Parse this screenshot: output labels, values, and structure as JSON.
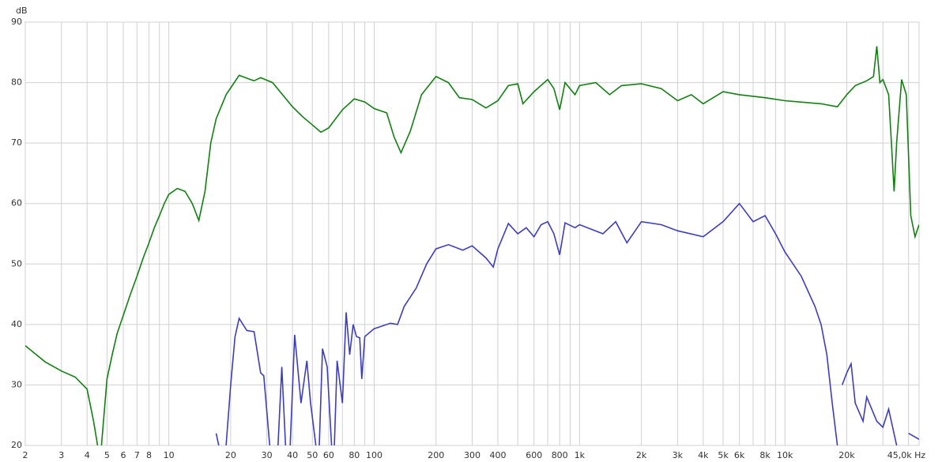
{
  "chart_data": {
    "type": "line",
    "y_label": "dB",
    "xscale": "log",
    "xlim": [
      2,
      45000
    ],
    "ylim": [
      20,
      90
    ],
    "yticks": [
      20,
      30,
      40,
      50,
      60,
      70,
      80,
      90
    ],
    "xticks": [
      2,
      3,
      4,
      5,
      6,
      7,
      8,
      10,
      20,
      30,
      40,
      50,
      60,
      80,
      100,
      200,
      300,
      400,
      600,
      800,
      {
        "value": 1000,
        "label": "1k"
      },
      {
        "value": 2000,
        "label": "2k"
      },
      {
        "value": 3000,
        "label": "3k"
      },
      {
        "value": 4000,
        "label": "4k"
      },
      {
        "value": 5000,
        "label": "5k"
      },
      {
        "value": 6000,
        "label": "6k"
      },
      {
        "value": 8000,
        "label": "8k"
      },
      {
        "value": 10000,
        "label": "10k"
      },
      {
        "value": 20000,
        "label": "20k"
      },
      {
        "value": 45000,
        "label": "45,0k Hz"
      }
    ],
    "x_minor_ticks": [
      9,
      70,
      90,
      500,
      700,
      900,
      7000,
      9000,
      30000,
      40000
    ],
    "grid": true,
    "series": [
      {
        "name": "green",
        "color": "#118011",
        "x": [
          2,
          2.5,
          3,
          3.5,
          4,
          4.3,
          4.5,
          4.6,
          4.7,
          5,
          5.3,
          5.6,
          6,
          6.5,
          7,
          7.5,
          8,
          8.5,
          9,
          9.5,
          10,
          11,
          12,
          13,
          14,
          15,
          16,
          17,
          19,
          22,
          25,
          26,
          28,
          32,
          40,
          45,
          50,
          55,
          60,
          70,
          80,
          90,
          100,
          115,
          125,
          135,
          150,
          170,
          200,
          230,
          260,
          300,
          350,
          400,
          450,
          500,
          530,
          600,
          700,
          750,
          800,
          850,
          950,
          1000,
          1200,
          1400,
          1600,
          2000,
          2500,
          3000,
          3500,
          4000,
          5000,
          6000,
          8000,
          10000,
          15000,
          18000,
          20000,
          22000,
          25000,
          27000,
          28000,
          29000,
          30000,
          32000,
          33000,
          34000,
          35000,
          37000,
          39000,
          41000,
          43000,
          45000
        ],
        "values": [
          36.5,
          33.8,
          32.3,
          31.3,
          29.3,
          24,
          20,
          null,
          20,
          31,
          35,
          38.5,
          41.5,
          45,
          48,
          51,
          53.5,
          56,
          58,
          60,
          61.5,
          62.5,
          62,
          60,
          57.2,
          62,
          70,
          74,
          78,
          81.2,
          80.5,
          80.3,
          80.8,
          80,
          76,
          74.3,
          73,
          71.8,
          72.5,
          75.5,
          77.3,
          76.8,
          75.7,
          75,
          71,
          68.4,
          72,
          78,
          81,
          80,
          77.5,
          77.2,
          75.8,
          77,
          79.5,
          79.8,
          76.5,
          78.5,
          80.5,
          79,
          75.5,
          80,
          78,
          79.5,
          80,
          78,
          79.5,
          79.8,
          79,
          77,
          78,
          76.5,
          78.5,
          78,
          77.5,
          77,
          76.5,
          76,
          78,
          79.5,
          80.3,
          81,
          86,
          80,
          80.5,
          78,
          70,
          62,
          70,
          80.5,
          78,
          58,
          54.5,
          56.5
        ]
      },
      {
        "name": "blue",
        "color": "#3c3cc0",
        "x": [
          17,
          17.5,
          18,
          19,
          20,
          21,
          22,
          24,
          26,
          28,
          29,
          31,
          32,
          34,
          35.5,
          37,
          38,
          39,
          41,
          44,
          47,
          49,
          52,
          53,
          54,
          56,
          59,
          62,
          63,
          64,
          66,
          70,
          73,
          76,
          79,
          82,
          85,
          87,
          90,
          100,
          120,
          130,
          140,
          160,
          180,
          200,
          230,
          270,
          300,
          350,
          380,
          400,
          450,
          500,
          550,
          600,
          650,
          700,
          750,
          800,
          850,
          950,
          1000,
          1300,
          1500,
          1700,
          2000,
          2500,
          3000,
          4000,
          5000,
          6000,
          7000,
          8000,
          9000,
          10000,
          12000,
          14000,
          15000,
          16000,
          17000,
          18000,
          18500,
          19000,
          20000,
          21000,
          22000,
          24000,
          25000,
          28000,
          30000,
          32000,
          35000,
          37000,
          40000,
          45000
        ],
        "values": [
          22,
          20,
          null,
          20,
          30,
          38,
          41,
          39,
          38.8,
          32,
          31.5,
          20,
          null,
          20,
          33,
          20,
          null,
          20,
          38.3,
          27,
          34,
          27,
          20,
          null,
          20,
          36,
          33,
          20,
          null,
          20,
          34,
          27,
          42,
          35,
          40,
          38,
          37.8,
          31,
          38,
          39.3,
          40.2,
          40,
          43,
          46,
          50,
          52.5,
          53.2,
          52.3,
          53,
          51,
          49.5,
          52.5,
          56.7,
          55,
          56,
          54.5,
          56.5,
          57,
          55,
          51.5,
          56.8,
          56,
          56.5,
          55,
          57,
          53.5,
          57,
          56.5,
          55.5,
          54.5,
          57,
          60,
          57,
          58,
          55,
          52,
          48,
          43,
          40,
          35,
          27,
          20,
          null,
          30,
          32,
          33.5,
          27,
          24,
          28,
          24,
          23,
          26,
          20,
          null,
          22,
          21
        ]
      }
    ]
  }
}
